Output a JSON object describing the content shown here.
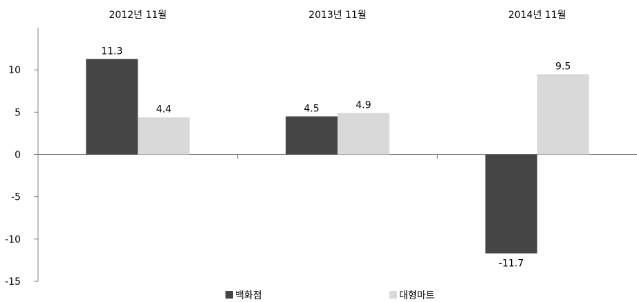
{
  "chart_data": {
    "type": "bar",
    "title": "",
    "xlabel": "",
    "ylabel": "",
    "categories": [
      "2012년 11월",
      "2013년 11월",
      "2014년 11월"
    ],
    "series": [
      {
        "name": "백화점",
        "values": [
          11.3,
          4.5,
          -11.7
        ],
        "labels": [
          "11.3",
          "4.5",
          "-11.7"
        ],
        "color": "#454545"
      },
      {
        "name": "대형마트",
        "values": [
          4.4,
          4.9,
          9.5
        ],
        "labels": [
          "4.4",
          "4.9",
          "9.5"
        ],
        "color": "#d9d9d9"
      }
    ],
    "ylim": [
      -15,
      15
    ],
    "yticks": [
      10,
      5,
      0,
      -5,
      -10,
      -15
    ],
    "ytick_labels": [
      "10",
      "5",
      "0",
      "-5",
      "-10",
      "-15"
    ],
    "grid": false,
    "legend_position": "bottom",
    "category_labels_position": "top"
  }
}
